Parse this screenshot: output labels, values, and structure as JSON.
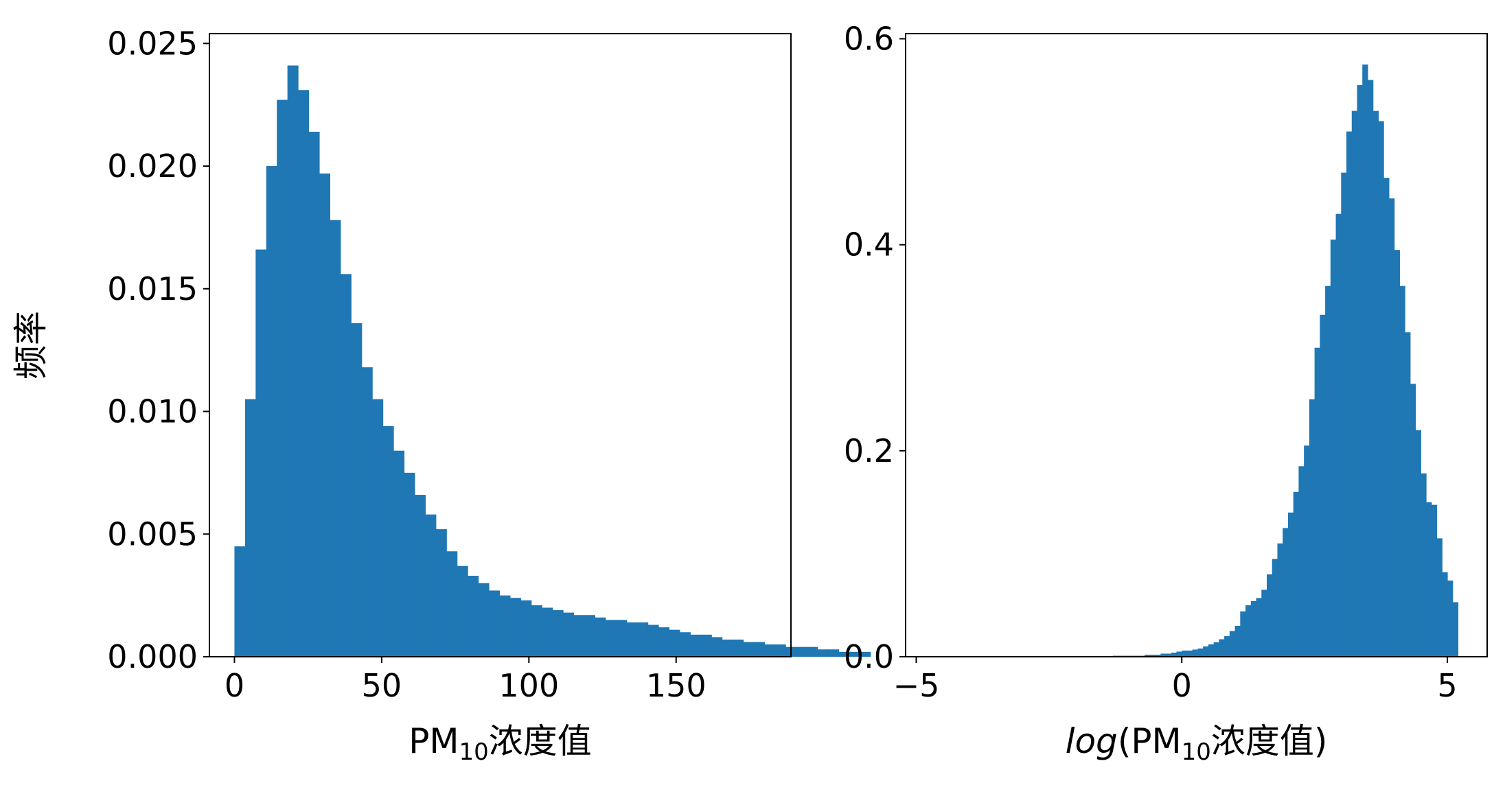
{
  "colors": {
    "bar": "#1f77b4",
    "axis": "#000000",
    "background": "#ffffff"
  },
  "chart_data": [
    {
      "type": "bar",
      "title": "",
      "xlabel": {
        "prefix": "",
        "italic": "",
        "main": "PM",
        "sub": "10",
        "suffix": "浓度值",
        "close": ""
      },
      "ylabel": "频率",
      "xlim": [
        -8.5,
        189
      ],
      "ylim": [
        0,
        0.0254
      ],
      "xticks": [
        0,
        50,
        100,
        150
      ],
      "xtick_labels": [
        "0",
        "50",
        "100",
        "150"
      ],
      "yticks": [
        0,
        0.005,
        0.01,
        0.015,
        0.02,
        0.025
      ],
      "ytick_labels": [
        "0.000",
        "0.005",
        "0.010",
        "0.015",
        "0.020",
        "0.025"
      ],
      "grid": false,
      "bin_start": 0,
      "bin_width": 3.6,
      "values": [
        0.0045,
        0.0105,
        0.0166,
        0.02,
        0.0227,
        0.0241,
        0.0231,
        0.0214,
        0.0197,
        0.0178,
        0.0156,
        0.0136,
        0.0118,
        0.0105,
        0.0094,
        0.0084,
        0.0075,
        0.0066,
        0.0058,
        0.0052,
        0.0043,
        0.0037,
        0.0033,
        0.003,
        0.0027,
        0.0025,
        0.0024,
        0.0023,
        0.0021,
        0.002,
        0.0019,
        0.0018,
        0.0017,
        0.0017,
        0.0016,
        0.0015,
        0.0015,
        0.0014,
        0.0014,
        0.0013,
        0.0012,
        0.0011,
        0.001,
        0.0009,
        0.0009,
        0.0008,
        0.0007,
        0.0007,
        0.0006,
        0.0006,
        0.0005,
        0.0005,
        0.0004,
        0.0004,
        0.0004,
        0.0003,
        0.0003,
        0.0002,
        0.0002,
        0.0002
      ]
    },
    {
      "type": "bar",
      "title": "",
      "xlabel": {
        "prefix": "",
        "italic": "log",
        "main": "(PM",
        "sub": "10",
        "suffix": "浓度值",
        "close": ")"
      },
      "ylabel": "",
      "xlim": [
        -5.2,
        5.75
      ],
      "ylim": [
        0,
        0.605
      ],
      "xticks": [
        -5,
        0,
        5
      ],
      "xtick_labels": [
        "−5",
        "0",
        "5"
      ],
      "yticks": [
        0,
        0.2,
        0.4,
        0.6
      ],
      "ytick_labels": [
        "0.0",
        "0.2",
        "0.4",
        "0.6"
      ],
      "grid": false,
      "bin_start": -4.7,
      "bin_width": 0.1,
      "values": [
        0,
        0,
        0,
        0,
        0,
        0,
        0,
        0,
        0,
        0,
        0,
        0,
        0,
        0,
        0,
        0,
        0,
        0,
        0,
        0,
        0,
        0,
        0,
        0,
        0,
        0,
        0,
        0,
        0,
        0,
        0,
        0,
        0,
        0,
        0.001,
        0.001,
        0.001,
        0.001,
        0.001,
        0.001,
        0.002,
        0.002,
        0.002,
        0.003,
        0.003,
        0.004,
        0.005,
        0.006,
        0.006,
        0.007,
        0.008,
        0.01,
        0.012,
        0.014,
        0.017,
        0.02,
        0.025,
        0.03,
        0.044,
        0.05,
        0.054,
        0.057,
        0.065,
        0.08,
        0.095,
        0.11,
        0.125,
        0.14,
        0.16,
        0.185,
        0.205,
        0.25,
        0.3,
        0.332,
        0.36,
        0.405,
        0.43,
        0.47,
        0.51,
        0.53,
        0.555,
        0.575,
        0.56,
        0.53,
        0.52,
        0.465,
        0.445,
        0.395,
        0.36,
        0.315,
        0.265,
        0.22,
        0.178,
        0.15,
        0.1475,
        0.115,
        0.082,
        0.074,
        0.053
      ]
    }
  ]
}
